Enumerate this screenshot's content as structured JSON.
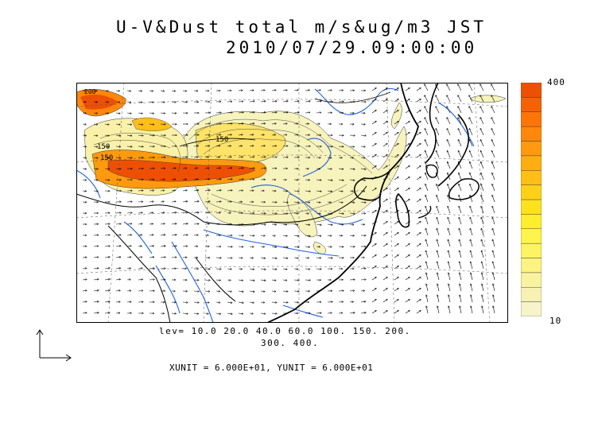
{
  "title": {
    "line1": "U-V&Dust total m/s&ug/m3 JST",
    "line2": "2010/07/29.09:00:00"
  },
  "colorbar": {
    "max_label": "400",
    "min_label": "10",
    "colors": [
      "#f6f4c8",
      "#f7f2b4",
      "#f9f29f",
      "#fbf382",
      "#fdf463",
      "#fef44a",
      "#ffee2c",
      "#ffe11e",
      "#ffd018",
      "#ffbf14",
      "#ffad10",
      "#ff9a0e",
      "#ff880c",
      "#fd7409",
      "#f56206",
      "#ed5004"
    ]
  },
  "contour_levels": {
    "line1": "lev= 10.0 20.0 40.0 60.0 100. 150. 200.",
    "line2": "300. 400."
  },
  "map_labels": {
    "label_a": "150",
    "label_b": "150",
    "label_c": "150",
    "label_d": "200"
  },
  "units": "XUNIT = 6.000E+01, YUNIT = 6.000E+01"
}
